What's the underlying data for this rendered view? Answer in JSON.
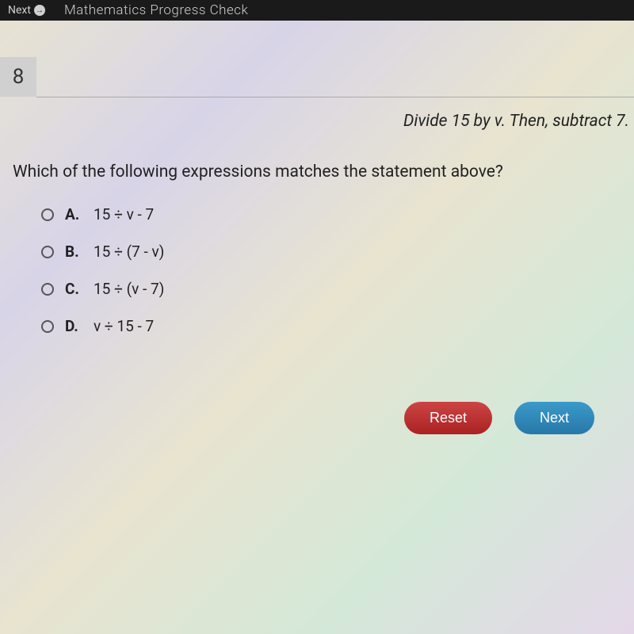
{
  "topbar": {
    "next_label": "Next",
    "arrow_glyph": "→",
    "title": "Mathematics Progress Check"
  },
  "question_number": "8",
  "instruction": "Divide 15 by v. Then, subtract 7.",
  "question": "Which of the following expressions matches the statement above?",
  "options": {
    "a": {
      "letter": "A.",
      "text": "15 ÷ v - 7"
    },
    "b": {
      "letter": "B.",
      "text": "15 ÷ (7 - v)"
    },
    "c": {
      "letter": "C.",
      "text": "15 ÷ (v - 7)"
    },
    "d": {
      "letter": "D.",
      "text": "v ÷ 15 - 7"
    }
  },
  "buttons": {
    "reset": "Reset",
    "next": "Next"
  },
  "colors": {
    "topbar_bg": "#1a1a1a",
    "reset_bg": "#b33",
    "next_bg": "#3090c0"
  }
}
